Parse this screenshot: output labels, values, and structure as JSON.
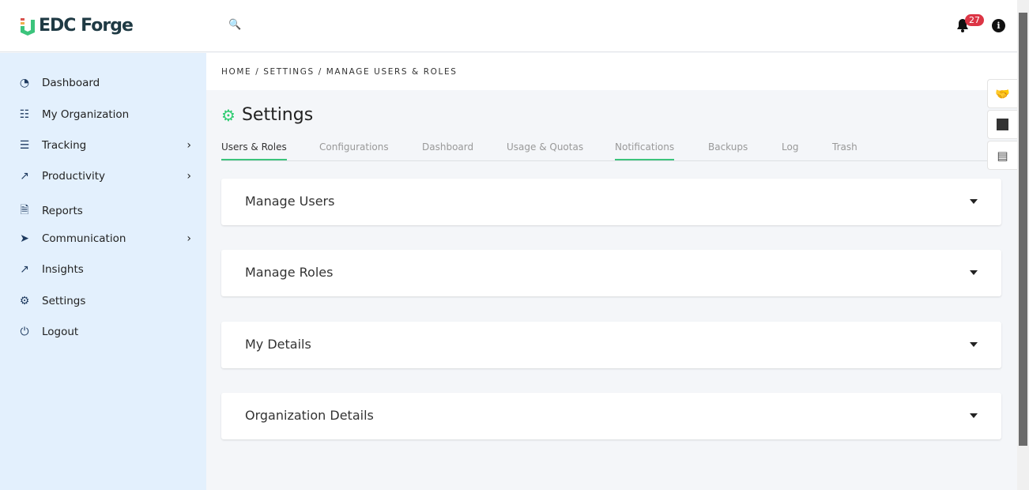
{
  "header": {
    "logo_text": "EDC Forge",
    "notification_count": "27"
  },
  "sidebar": {
    "items": [
      {
        "label": "Dashboard",
        "icon": "gauge-icon",
        "chevron": false
      },
      {
        "label": "My Organization",
        "icon": "sitemap-icon",
        "chevron": false
      },
      {
        "label": "Tracking",
        "icon": "list-icon",
        "chevron": true
      },
      {
        "label": "Productivity",
        "icon": "chart-line-icon",
        "chevron": true
      },
      {
        "label": "Reports",
        "icon": "file-icon",
        "chevron": false
      },
      {
        "label": "Communication",
        "icon": "paper-plane-icon",
        "chevron": true
      },
      {
        "label": "Insights",
        "icon": "chart-line-icon",
        "chevron": false
      },
      {
        "label": "Settings",
        "icon": "gear-icon",
        "chevron": false
      },
      {
        "label": "Logout",
        "icon": "power-icon",
        "chevron": false
      }
    ]
  },
  "breadcrumb": "HOME / SETTINGS / MANAGE USERS & ROLES",
  "page": {
    "title": "Settings"
  },
  "tabs": [
    "Users & Roles",
    "Configurations",
    "Dashboard",
    "Usage & Quotas",
    "Notifications",
    "Backups",
    "Log",
    "Trash"
  ],
  "panels": [
    "Manage Users",
    "Manage Roles",
    "My Details",
    "Organization Details"
  ],
  "colors": {
    "accent": "#3cc47c",
    "badge": "#dc3545",
    "sidebar": "#e3f0fd"
  }
}
